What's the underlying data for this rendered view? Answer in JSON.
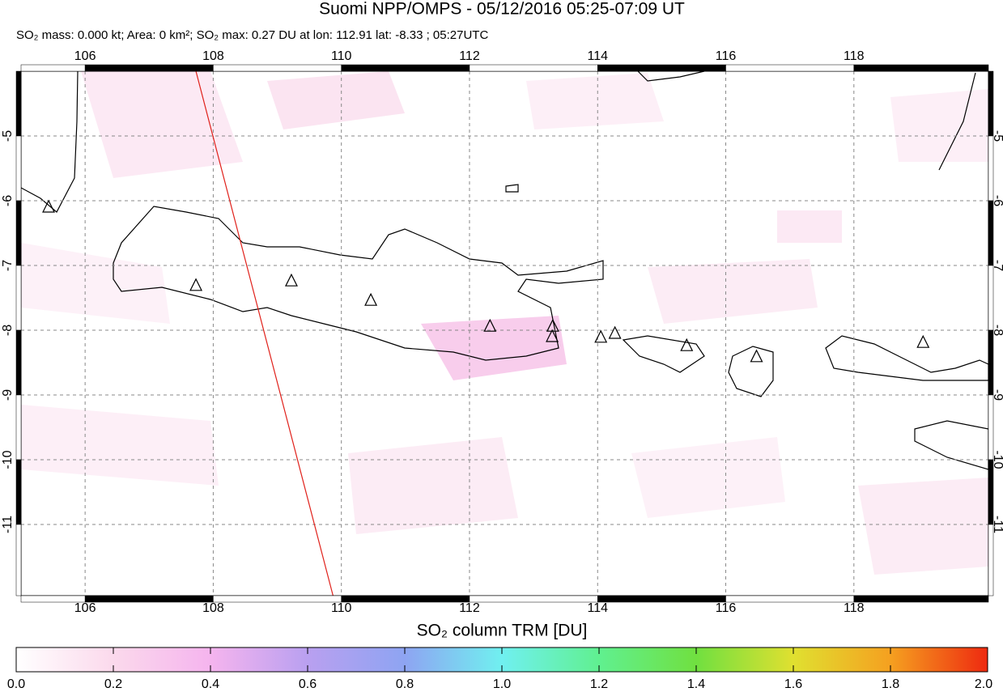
{
  "chart_data": {
    "type": "map",
    "title": "Suomi NPP/OMPS - 05/12/2016 05:25-07:09 UT",
    "subtitle": "SO₂ mass: 0.000 kt; Area: 0 km²; SO₂ max: 0.27 DU at lon: 112.91 lat: -8.33 ; 05:27UTC",
    "xlim": [
      105,
      120.1
    ],
    "ylim": [
      -12.1,
      -4
    ],
    "xticks": [
      106,
      108,
      110,
      112,
      114,
      116,
      118
    ],
    "yticks": [
      -5,
      -6,
      -7,
      -8,
      -9,
      -10,
      -11
    ],
    "grid": true,
    "volcanoes": {
      "x": [
        105.43,
        107.73,
        109.22,
        110.46,
        112.32,
        113.3,
        113.29,
        114.05,
        114.27,
        115.39,
        116.48,
        119.08
      ],
      "y": [
        -6.1,
        -7.31,
        -7.24,
        -7.54,
        -7.94,
        -7.94,
        -8.1,
        -8.11,
        -8.05,
        -8.24,
        -8.41,
        -8.19
      ]
    },
    "track": {
      "color": "#e0201a",
      "x": [
        107.73,
        109.87
      ],
      "y": [
        -4,
        -12.1
      ]
    },
    "colorbar": {
      "label": "SO₂ column TRM [DU]",
      "lim": [
        0,
        2
      ],
      "ticks": [
        {
          "value": 0,
          "label": "0.0"
        },
        0.2,
        0.4,
        0.6,
        0.8,
        {
          "value": 1,
          "label": "1.0"
        },
        1.2,
        1.4,
        1.6,
        1.8,
        {
          "value": 2,
          "label": "2.0"
        }
      ]
    }
  }
}
